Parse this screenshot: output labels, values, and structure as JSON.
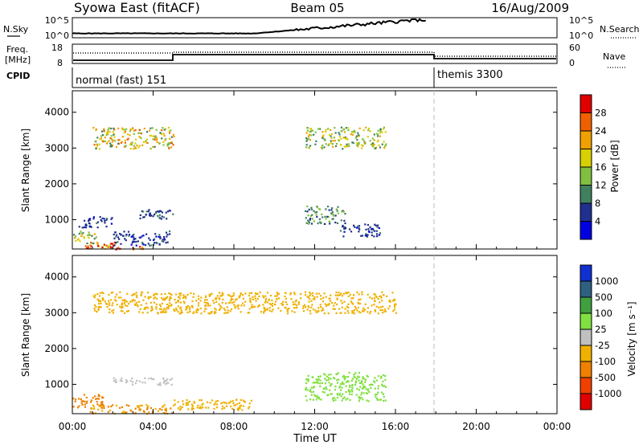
{
  "header": {
    "title": "Syowa East (fitACF)",
    "beam": "Beam 05",
    "date": "16/Aug/2009"
  },
  "side_labels": {
    "nsky": "N.Sky",
    "freq_line1": "Freq.",
    "freq_line2": "[MHz]",
    "cpid": "CPID",
    "nsearch": "N.Search",
    "nave": "Nave"
  },
  "top_axes": {
    "noise_ticks": [
      "10^5",
      "10^0"
    ],
    "noise_right_ticks": [
      "10^5",
      "10^0"
    ],
    "freq_ticks": [
      "18",
      "8"
    ],
    "nave_ticks": [
      "60",
      "0"
    ]
  },
  "cpid_modes": [
    {
      "label": "normal (fast) 151",
      "start": 0
    },
    {
      "label": "themis 3300",
      "start": 18
    }
  ],
  "x_axis": {
    "label": "Time UT",
    "ticks": [
      "00:00",
      "04:00",
      "08:00",
      "12:00",
      "16:00",
      "20:00",
      "00:00"
    ],
    "tick_hours": [
      0,
      4,
      8,
      12,
      16,
      20,
      24
    ]
  },
  "panels": {
    "power": {
      "ylabel": "Slant Range [km]",
      "yticks": [
        "4000",
        "3000",
        "2000",
        "1000"
      ],
      "cbar_label": "Power [dB]",
      "cbar_ticks": [
        "28",
        "24",
        "20",
        "16",
        "12",
        "8",
        "4"
      ],
      "cbar_colors": [
        "#e00000",
        "#f06000",
        "#f0a000",
        "#d8d000",
        "#80c040",
        "#408060",
        "#203090",
        "#0000e0"
      ]
    },
    "velocity": {
      "ylabel": "Slant Range [km]",
      "yticks": [
        "4000",
        "3000",
        "2000",
        "1000"
      ],
      "cbar_label": "Velocity [m s⁻¹]",
      "cbar_ticks": [
        "1000",
        "500",
        "100",
        "25",
        "-25",
        "-100",
        "-500",
        "-1000"
      ],
      "cbar_colors": [
        "#1030d0",
        "#306080",
        "#40a040",
        "#80e040",
        "#c0c0c0",
        "#f0b000",
        "#f08000",
        "#f04000",
        "#e00000"
      ]
    }
  },
  "chart_data": {
    "type": "heatmap",
    "title": "Syowa East (fitACF)",
    "xlabel": "Time UT",
    "ylabel": "Slant Range [km]",
    "xlim": [
      0,
      24
    ],
    "ylim": [
      180,
      4600
    ],
    "mode_change_hour": 18,
    "series": [
      {
        "name": "Power [dB]",
        "clusters": [
          {
            "t0": 0.0,
            "t1": 1.2,
            "r0": 350,
            "r1": 700,
            "value": 16
          },
          {
            "t0": 0.6,
            "t1": 2.2,
            "r0": 200,
            "r1": 420,
            "value": 24
          },
          {
            "t0": 1.5,
            "t1": 3.5,
            "r0": 180,
            "r1": 300,
            "value": 26
          },
          {
            "t0": 2.0,
            "t1": 4.8,
            "r0": 300,
            "r1": 700,
            "value": 6
          },
          {
            "t0": 3.2,
            "t1": 5.0,
            "r0": 1000,
            "r1": 1300,
            "value": 7
          },
          {
            "t0": 0.3,
            "t1": 2.0,
            "r0": 800,
            "r1": 1100,
            "value": 6
          },
          {
            "t0": 1.0,
            "t1": 5.0,
            "r0": 3000,
            "r1": 3600,
            "value": 18
          },
          {
            "t0": 11.5,
            "t1": 13.5,
            "r0": 900,
            "r1": 1400,
            "value": 10
          },
          {
            "t0": 13.2,
            "t1": 15.3,
            "r0": 550,
            "r1": 900,
            "value": 6
          },
          {
            "t0": 11.5,
            "t1": 15.5,
            "r0": 3000,
            "r1": 3600,
            "value": 15
          }
        ]
      },
      {
        "name": "Velocity [m s⁻¹]",
        "clusters": [
          {
            "t0": 0.0,
            "t1": 1.5,
            "r0": 350,
            "r1": 750,
            "value": -200
          },
          {
            "t0": 0.8,
            "t1": 5.0,
            "r0": 200,
            "r1": 450,
            "value": -100
          },
          {
            "t0": 2.0,
            "t1": 5.0,
            "r0": 1000,
            "r1": 1200,
            "value": 0
          },
          {
            "t0": 5.0,
            "t1": 9.0,
            "r0": 300,
            "r1": 600,
            "value": -60
          },
          {
            "t0": 11.5,
            "t1": 15.5,
            "r0": 550,
            "r1": 1350,
            "value": 60
          },
          {
            "t0": 1.0,
            "t1": 16.0,
            "r0": 3000,
            "r1": 3600,
            "value": -60
          }
        ]
      }
    ],
    "noise_sky": "rises from ~10^1 to ~10^5 between 09:00 and 17:00 UT",
    "frequency_mhz": {
      "before_05h": 10.5,
      "after_05h": 12.3,
      "after_18h": 10.8
    },
    "grid": false
  }
}
